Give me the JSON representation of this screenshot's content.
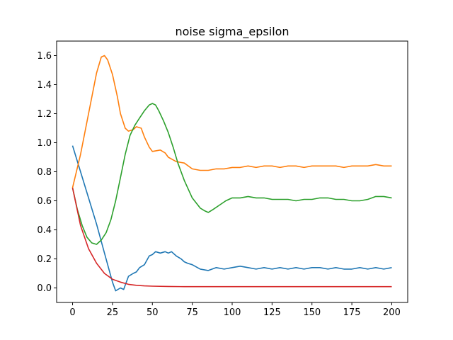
{
  "chart_data": {
    "type": "line",
    "title": "noise sigma_epsilon",
    "xlabel": "",
    "ylabel": "",
    "xlim": [
      -10,
      210
    ],
    "ylim": [
      -0.1,
      1.7
    ],
    "grid": false,
    "xticks": [
      0,
      25,
      50,
      75,
      100,
      125,
      150,
      175,
      200
    ],
    "xtick_labels": [
      "0",
      "25",
      "50",
      "75",
      "100",
      "125",
      "150",
      "175",
      "200"
    ],
    "yticks": [
      0.0,
      0.2,
      0.4,
      0.6,
      0.8,
      1.0,
      1.2,
      1.4,
      1.6
    ],
    "ytick_labels": [
      "0.0",
      "0.2",
      "0.4",
      "0.6",
      "0.8",
      "1.0",
      "1.2",
      "1.4",
      "1.6"
    ],
    "series": [
      {
        "color": "#1f77b4",
        "x": [
          0,
          5,
          10,
          15,
          20,
          25,
          27,
          30,
          32,
          35,
          38,
          40,
          42,
          45,
          48,
          50,
          52,
          55,
          58,
          60,
          62,
          65,
          68,
          70,
          72,
          75,
          80,
          85,
          90,
          95,
          100,
          105,
          110,
          115,
          120,
          125,
          130,
          135,
          140,
          145,
          150,
          155,
          160,
          165,
          170,
          175,
          180,
          185,
          190,
          195,
          200
        ],
        "y": [
          0.98,
          0.8,
          0.62,
          0.44,
          0.24,
          0.04,
          -0.02,
          0.0,
          -0.01,
          0.08,
          0.1,
          0.11,
          0.14,
          0.16,
          0.22,
          0.23,
          0.25,
          0.24,
          0.25,
          0.24,
          0.25,
          0.22,
          0.2,
          0.18,
          0.17,
          0.16,
          0.13,
          0.12,
          0.14,
          0.13,
          0.14,
          0.15,
          0.14,
          0.13,
          0.14,
          0.13,
          0.14,
          0.13,
          0.14,
          0.13,
          0.14,
          0.14,
          0.13,
          0.14,
          0.13,
          0.13,
          0.14,
          0.13,
          0.14,
          0.13,
          0.14
        ]
      },
      {
        "color": "#ff7f0e",
        "x": [
          0,
          5,
          10,
          15,
          18,
          20,
          22,
          25,
          28,
          30,
          33,
          35,
          38,
          40,
          43,
          45,
          48,
          50,
          55,
          58,
          60,
          65,
          70,
          75,
          80,
          85,
          90,
          95,
          100,
          105,
          110,
          115,
          120,
          125,
          130,
          135,
          140,
          145,
          150,
          155,
          160,
          165,
          170,
          175,
          180,
          185,
          190,
          195,
          200
        ],
        "y": [
          0.69,
          0.92,
          1.2,
          1.48,
          1.59,
          1.6,
          1.57,
          1.47,
          1.32,
          1.2,
          1.1,
          1.08,
          1.09,
          1.11,
          1.1,
          1.04,
          0.97,
          0.94,
          0.95,
          0.93,
          0.9,
          0.87,
          0.86,
          0.82,
          0.81,
          0.81,
          0.82,
          0.82,
          0.83,
          0.83,
          0.84,
          0.83,
          0.84,
          0.84,
          0.83,
          0.84,
          0.84,
          0.83,
          0.84,
          0.84,
          0.84,
          0.84,
          0.83,
          0.84,
          0.84,
          0.84,
          0.85,
          0.84,
          0.84
        ]
      },
      {
        "color": "#2ca02c",
        "x": [
          0,
          3,
          6,
          9,
          12,
          15,
          18,
          21,
          24,
          27,
          30,
          33,
          36,
          39,
          42,
          45,
          48,
          50,
          52,
          54,
          57,
          60,
          63,
          66,
          70,
          75,
          80,
          83,
          85,
          88,
          92,
          96,
          100,
          105,
          110,
          115,
          120,
          125,
          130,
          135,
          140,
          145,
          150,
          155,
          160,
          165,
          170,
          175,
          180,
          185,
          190,
          195,
          200
        ],
        "y": [
          0.69,
          0.54,
          0.43,
          0.35,
          0.31,
          0.3,
          0.33,
          0.38,
          0.47,
          0.6,
          0.76,
          0.92,
          1.05,
          1.12,
          1.17,
          1.22,
          1.26,
          1.27,
          1.26,
          1.22,
          1.15,
          1.07,
          0.97,
          0.86,
          0.74,
          0.62,
          0.55,
          0.53,
          0.52,
          0.54,
          0.57,
          0.6,
          0.62,
          0.62,
          0.63,
          0.62,
          0.62,
          0.61,
          0.61,
          0.61,
          0.6,
          0.61,
          0.61,
          0.62,
          0.62,
          0.61,
          0.61,
          0.6,
          0.6,
          0.61,
          0.63,
          0.63,
          0.62
        ]
      },
      {
        "color": "#d62728",
        "x": [
          0,
          5,
          10,
          15,
          20,
          25,
          30,
          35,
          40,
          45,
          50,
          60,
          70,
          80,
          90,
          100,
          125,
          150,
          175,
          200
        ],
        "y": [
          0.69,
          0.43,
          0.27,
          0.17,
          0.1,
          0.06,
          0.04,
          0.025,
          0.018,
          0.014,
          0.012,
          0.01,
          0.009,
          0.009,
          0.009,
          0.009,
          0.009,
          0.009,
          0.009,
          0.009
        ]
      }
    ]
  }
}
